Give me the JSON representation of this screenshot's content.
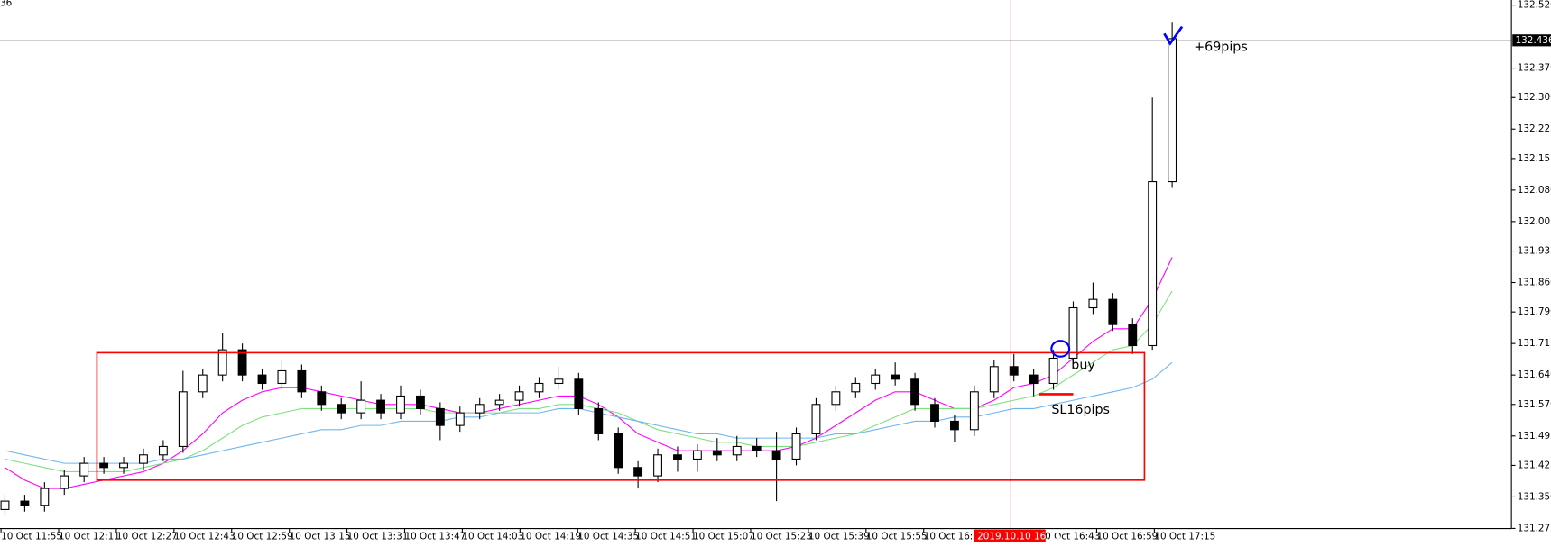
{
  "chart_data": {
    "type": "candlestick",
    "corner_label": "36",
    "ylim": [
      131.263,
      132.532
    ],
    "yticks": [
      {
        "value": 132.52,
        "label": "132.520"
      },
      {
        "value": 132.37,
        "label": "132.370"
      },
      {
        "value": 132.3,
        "label": "132.300"
      },
      {
        "value": 132.225,
        "label": "132.225"
      },
      {
        "value": 132.155,
        "label": "132.155"
      },
      {
        "value": 132.08,
        "label": "132.080"
      },
      {
        "value": 132.005,
        "label": "132.005"
      },
      {
        "value": 131.935,
        "label": "131.935"
      },
      {
        "value": 131.86,
        "label": "131.860"
      },
      {
        "value": 131.79,
        "label": "131.790"
      },
      {
        "value": 131.715,
        "label": "131.715"
      },
      {
        "value": 131.64,
        "label": "131.640"
      },
      {
        "value": 131.57,
        "label": "131.570"
      },
      {
        "value": 131.495,
        "label": "131.495"
      },
      {
        "value": 131.425,
        "label": "131.425"
      },
      {
        "value": 131.35,
        "label": "131.350"
      },
      {
        "value": 131.275,
        "label": "131.275"
      }
    ],
    "current_price": {
      "value": 132.436,
      "label": "132.436"
    },
    "xticks": [
      "10 Oct 11:55",
      "10 Oct 12:11",
      "10 Oct 12:27",
      "10 Oct 12:43",
      "10 Oct 12:59",
      "10 Oct 13:15",
      "10 Oct 13:31",
      "10 Oct 13:47",
      "10 Oct 14:03",
      "10 Oct 14:19",
      "10 Oct 14:35",
      "10 Oct 14:51",
      "10 Oct 15:07",
      "10 Oct 15:23",
      "10 Oct 15:39",
      "10 Oct 15:55",
      "10 Oct 16:11",
      null,
      "10 Oct 16:43",
      "10 Oct 16:59",
      "10 Oct 17:15"
    ],
    "crosshair_time": "2019.10.10 16:35",
    "up_color": "#ffffff",
    "down_color": "#000000",
    "open": [
      131.32,
      131.34,
      131.33,
      131.37,
      131.4,
      131.43,
      131.42,
      131.43,
      131.45,
      131.47,
      131.6,
      131.64,
      131.7,
      131.64,
      131.62,
      131.65,
      131.6,
      131.57,
      131.55,
      131.58,
      131.55,
      131.59,
      131.56,
      131.52,
      131.55,
      131.57,
      131.58,
      131.6,
      131.62,
      131.63,
      131.56,
      131.5,
      131.42,
      131.4,
      131.45,
      131.44,
      131.46,
      131.45,
      131.47,
      131.46,
      131.44,
      131.5,
      131.57,
      131.6,
      131.62,
      131.64,
      131.63,
      131.57,
      131.53,
      131.51,
      131.6,
      131.66,
      131.64,
      131.62,
      131.68,
      131.8,
      131.82,
      131.76,
      131.71,
      132.1
    ],
    "high": [
      131.355,
      131.355,
      131.385,
      131.415,
      131.445,
      131.445,
      131.445,
      131.465,
      131.485,
      131.65,
      131.655,
      131.74,
      131.715,
      131.655,
      131.675,
      131.665,
      131.615,
      131.585,
      131.625,
      131.595,
      131.615,
      131.605,
      131.575,
      131.565,
      131.585,
      131.595,
      131.615,
      131.635,
      131.66,
      131.645,
      131.575,
      131.515,
      131.435,
      131.465,
      131.47,
      131.475,
      131.49,
      131.495,
      131.49,
      131.505,
      131.515,
      131.585,
      131.615,
      131.635,
      131.655,
      131.67,
      131.645,
      131.585,
      131.545,
      131.615,
      131.675,
      131.69,
      131.655,
      131.7,
      131.815,
      131.86,
      131.835,
      131.775,
      132.3,
      132.48
    ],
    "low": [
      131.305,
      131.315,
      131.315,
      131.355,
      131.385,
      131.405,
      131.405,
      131.415,
      131.435,
      131.455,
      131.585,
      131.625,
      131.625,
      131.605,
      131.605,
      131.585,
      131.555,
      131.535,
      131.535,
      131.535,
      131.535,
      131.545,
      131.485,
      131.505,
      131.535,
      131.555,
      131.565,
      131.585,
      131.605,
      131.545,
      131.485,
      131.405,
      131.37,
      131.385,
      131.41,
      131.41,
      131.435,
      131.435,
      131.445,
      131.34,
      131.425,
      131.485,
      131.555,
      131.585,
      131.605,
      131.615,
      131.555,
      131.515,
      131.48,
      131.495,
      131.585,
      131.625,
      131.59,
      131.605,
      131.665,
      131.785,
      131.745,
      131.69,
      131.7,
      132.085
    ],
    "close": [
      131.34,
      131.33,
      131.37,
      131.4,
      131.43,
      131.42,
      131.43,
      131.45,
      131.47,
      131.6,
      131.64,
      131.7,
      131.64,
      131.62,
      131.65,
      131.6,
      131.57,
      131.55,
      131.58,
      131.55,
      131.59,
      131.56,
      131.52,
      131.55,
      131.57,
      131.58,
      131.6,
      131.62,
      131.63,
      131.56,
      131.5,
      131.42,
      131.4,
      131.45,
      131.44,
      131.46,
      131.45,
      131.47,
      131.46,
      131.44,
      131.5,
      131.57,
      131.6,
      131.62,
      131.64,
      131.63,
      131.57,
      131.53,
      131.51,
      131.6,
      131.66,
      131.64,
      131.62,
      131.68,
      131.8,
      131.82,
      131.76,
      131.71,
      132.1,
      132.44
    ],
    "indicators": [
      {
        "color": "#ff00ff",
        "values": [
          131.42,
          131.39,
          131.37,
          131.37,
          131.38,
          131.39,
          131.4,
          131.41,
          131.43,
          131.46,
          131.5,
          131.55,
          131.58,
          131.6,
          131.61,
          131.61,
          131.6,
          131.59,
          131.58,
          131.57,
          131.57,
          131.57,
          131.56,
          131.55,
          131.55,
          131.56,
          131.57,
          131.58,
          131.59,
          131.59,
          131.57,
          131.54,
          131.5,
          131.48,
          131.46,
          131.46,
          131.46,
          131.46,
          131.46,
          131.46,
          131.47,
          131.49,
          131.52,
          131.55,
          131.58,
          131.6,
          131.6,
          131.58,
          131.56,
          131.56,
          131.58,
          131.61,
          131.62,
          131.64,
          131.68,
          131.72,
          131.75,
          131.75,
          131.82,
          131.92
        ]
      },
      {
        "color": "#7ee07e",
        "values": [
          131.44,
          131.43,
          131.42,
          131.41,
          131.41,
          131.41,
          131.41,
          131.42,
          131.43,
          131.44,
          131.46,
          131.49,
          131.52,
          131.54,
          131.55,
          131.56,
          131.56,
          131.56,
          131.56,
          131.56,
          131.56,
          131.56,
          131.55,
          131.55,
          131.55,
          131.55,
          131.56,
          131.56,
          131.57,
          131.57,
          131.56,
          131.55,
          131.53,
          131.51,
          131.5,
          131.49,
          131.48,
          131.48,
          131.47,
          131.47,
          131.47,
          131.48,
          131.49,
          131.5,
          131.52,
          131.54,
          131.56,
          131.56,
          131.56,
          131.56,
          131.57,
          131.58,
          131.59,
          131.61,
          131.64,
          131.67,
          131.7,
          131.71,
          131.76,
          131.84
        ]
      },
      {
        "color": "#6cb6f0",
        "values": [
          131.46,
          131.45,
          131.44,
          131.43,
          131.43,
          131.43,
          131.43,
          131.43,
          131.44,
          131.44,
          131.45,
          131.46,
          131.47,
          131.48,
          131.49,
          131.5,
          131.51,
          131.51,
          131.52,
          131.52,
          131.53,
          131.53,
          131.53,
          131.54,
          131.54,
          131.55,
          131.55,
          131.55,
          131.56,
          131.56,
          131.55,
          131.54,
          131.53,
          131.52,
          131.51,
          131.5,
          131.5,
          131.49,
          131.49,
          131.49,
          131.49,
          131.49,
          131.5,
          131.5,
          131.51,
          131.52,
          131.53,
          131.53,
          131.54,
          131.54,
          131.55,
          131.56,
          131.56,
          131.57,
          131.58,
          131.59,
          131.6,
          131.61,
          131.63,
          131.67
        ]
      }
    ],
    "annotations": [
      "+69pips",
      "buy",
      "SL16pips"
    ]
  }
}
